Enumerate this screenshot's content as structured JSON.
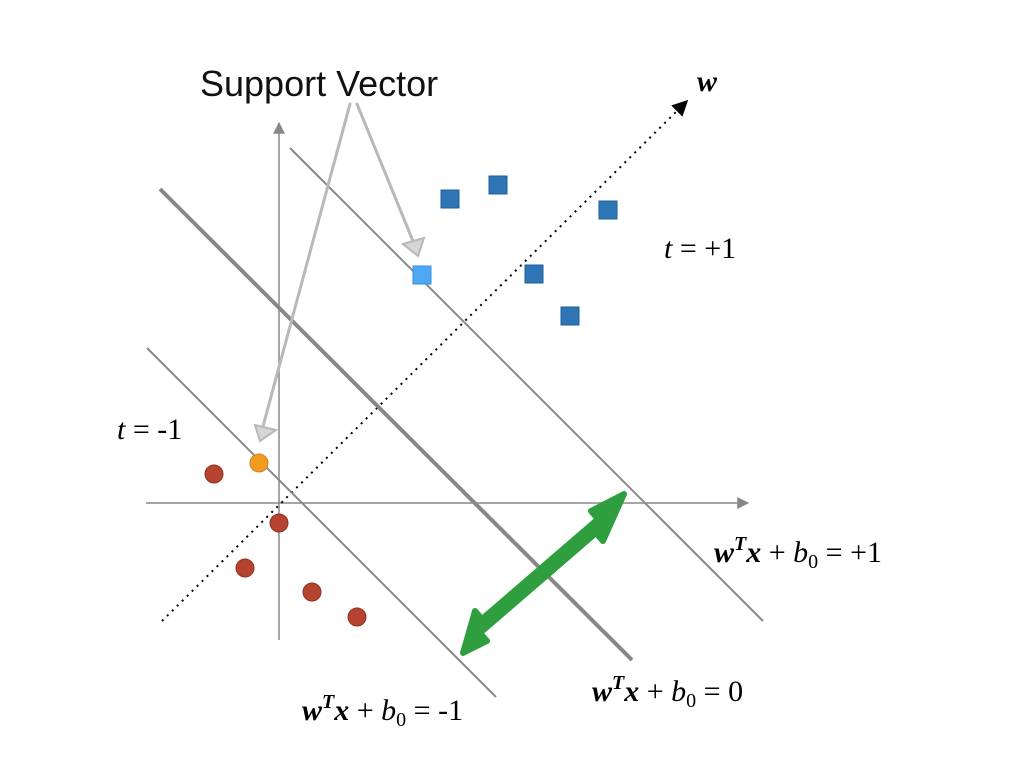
{
  "labels": {
    "support_vector": "Support Vector",
    "w_axis": "w",
    "t_plus": "+1",
    "t_minus": "-1",
    "t_var": "t",
    "equals": " = ",
    "eq_plus_rhs": "+1",
    "eq_zero_rhs": "0",
    "eq_minus_rhs": "-1",
    "w_bold": "w",
    "t_superscript": "T",
    "x_bold": "x",
    "plus": " + ",
    "b_var": "b",
    "zero_subscript": "0"
  },
  "colors": {
    "positive_class": "#2e75b6",
    "positive_support_vector": "#4fa8f5",
    "negative_class": "#b5432f",
    "negative_support_vector": "#f39b1f",
    "margin_arrow": "#2e9e3e",
    "hyperplane": "#888888",
    "axes": "#888888",
    "w_direction": "#000000"
  }
}
